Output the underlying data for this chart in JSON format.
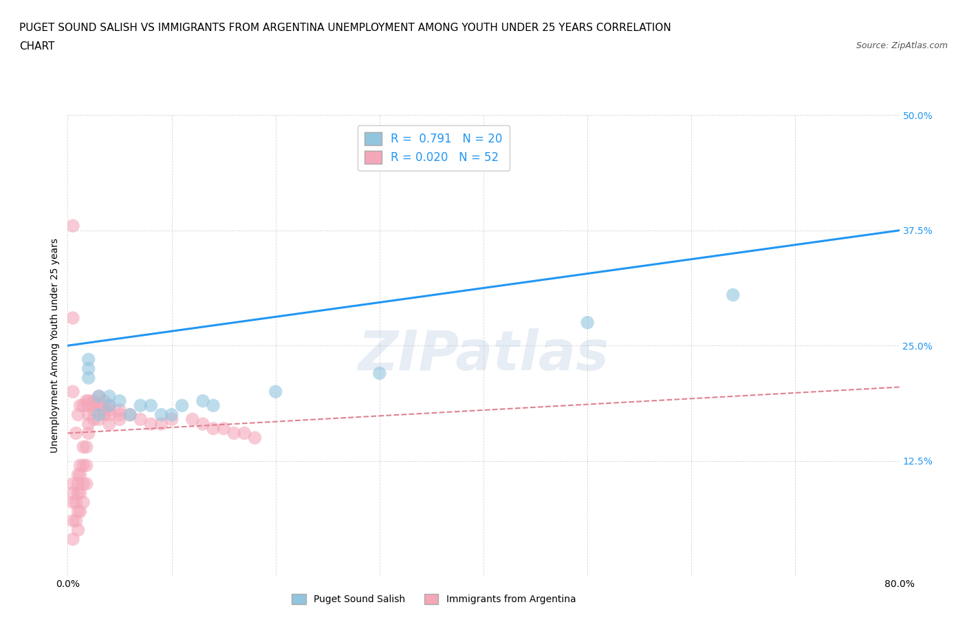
{
  "title_line1": "PUGET SOUND SALISH VS IMMIGRANTS FROM ARGENTINA UNEMPLOYMENT AMONG YOUTH UNDER 25 YEARS CORRELATION",
  "title_line2": "CHART",
  "source_text": "Source: ZipAtlas.com",
  "ylabel": "Unemployment Among Youth under 25 years",
  "xlim": [
    0,
    0.8
  ],
  "ylim": [
    0,
    0.5
  ],
  "xticks": [
    0.0,
    0.1,
    0.2,
    0.3,
    0.4,
    0.5,
    0.6,
    0.7,
    0.8
  ],
  "xticklabels": [
    "0.0%",
    "",
    "",
    "",
    "",
    "",
    "",
    "",
    "80.0%"
  ],
  "yticks_right": [
    0.0,
    0.125,
    0.25,
    0.375,
    0.5
  ],
  "yticklabels_right": [
    "",
    "12.5%",
    "25.0%",
    "37.5%",
    "50.0%"
  ],
  "blue_color": "#92c5de",
  "pink_color": "#f4a7b9",
  "blue_line_color": "#2196F3",
  "pink_line_color": "#e08090",
  "R_blue": 0.791,
  "N_blue": 20,
  "R_pink": 0.02,
  "N_pink": 52,
  "watermark": "ZIPatlas",
  "legend_label_blue": "Puget Sound Salish",
  "legend_label_pink": "Immigrants from Argentina",
  "blue_scatter_x": [
    0.02,
    0.02,
    0.03,
    0.04,
    0.04,
    0.05,
    0.07,
    0.08,
    0.1,
    0.13,
    0.14,
    0.5,
    0.64,
    0.02,
    0.03,
    0.06,
    0.09,
    0.11,
    0.2,
    0.3
  ],
  "blue_scatter_y": [
    0.235,
    0.225,
    0.195,
    0.195,
    0.185,
    0.19,
    0.185,
    0.185,
    0.175,
    0.19,
    0.185,
    0.275,
    0.305,
    0.215,
    0.175,
    0.175,
    0.175,
    0.185,
    0.2,
    0.22
  ],
  "pink_scatter_x": [
    0.005,
    0.005,
    0.005,
    0.005,
    0.005,
    0.008,
    0.008,
    0.01,
    0.01,
    0.01,
    0.01,
    0.01,
    0.012,
    0.012,
    0.012,
    0.012,
    0.015,
    0.015,
    0.015,
    0.015,
    0.018,
    0.018,
    0.018,
    0.02,
    0.02,
    0.02,
    0.02,
    0.025,
    0.025,
    0.025,
    0.03,
    0.03,
    0.03,
    0.035,
    0.035,
    0.04,
    0.04,
    0.04,
    0.05,
    0.05,
    0.06,
    0.07,
    0.08,
    0.09,
    0.1,
    0.12,
    0.13,
    0.14,
    0.15,
    0.16,
    0.17,
    0.18
  ],
  "pink_scatter_y": [
    0.04,
    0.06,
    0.08,
    0.09,
    0.1,
    0.06,
    0.08,
    0.05,
    0.07,
    0.09,
    0.1,
    0.11,
    0.07,
    0.09,
    0.11,
    0.12,
    0.08,
    0.1,
    0.12,
    0.14,
    0.1,
    0.12,
    0.14,
    0.155,
    0.165,
    0.175,
    0.185,
    0.17,
    0.18,
    0.19,
    0.17,
    0.185,
    0.195,
    0.175,
    0.19,
    0.165,
    0.175,
    0.185,
    0.17,
    0.18,
    0.175,
    0.17,
    0.165,
    0.165,
    0.17,
    0.17,
    0.165,
    0.16,
    0.16,
    0.155,
    0.155,
    0.15
  ],
  "pink_scatter_x2": [
    0.005,
    0.005,
    0.005,
    0.008,
    0.01,
    0.012,
    0.015,
    0.018,
    0.02,
    0.025,
    0.03,
    0.035,
    0.04,
    0.05
  ],
  "pink_scatter_y2": [
    0.38,
    0.28,
    0.2,
    0.155,
    0.175,
    0.185,
    0.185,
    0.19,
    0.19,
    0.185,
    0.185,
    0.18,
    0.18,
    0.175
  ],
  "blue_trendline_x": [
    0.0,
    0.8
  ],
  "blue_trendline_y": [
    0.25,
    0.375
  ],
  "pink_trendline_x": [
    0.0,
    0.8
  ],
  "pink_trendline_y": [
    0.155,
    0.205
  ],
  "grid_color": "#cccccc",
  "background_color": "#ffffff",
  "title_fontsize": 11,
  "label_fontsize": 10,
  "tick_fontsize": 10,
  "legend_fontsize": 12,
  "right_tick_color": "#2196F3",
  "marker_size": 14,
  "marker_alpha": 0.6
}
